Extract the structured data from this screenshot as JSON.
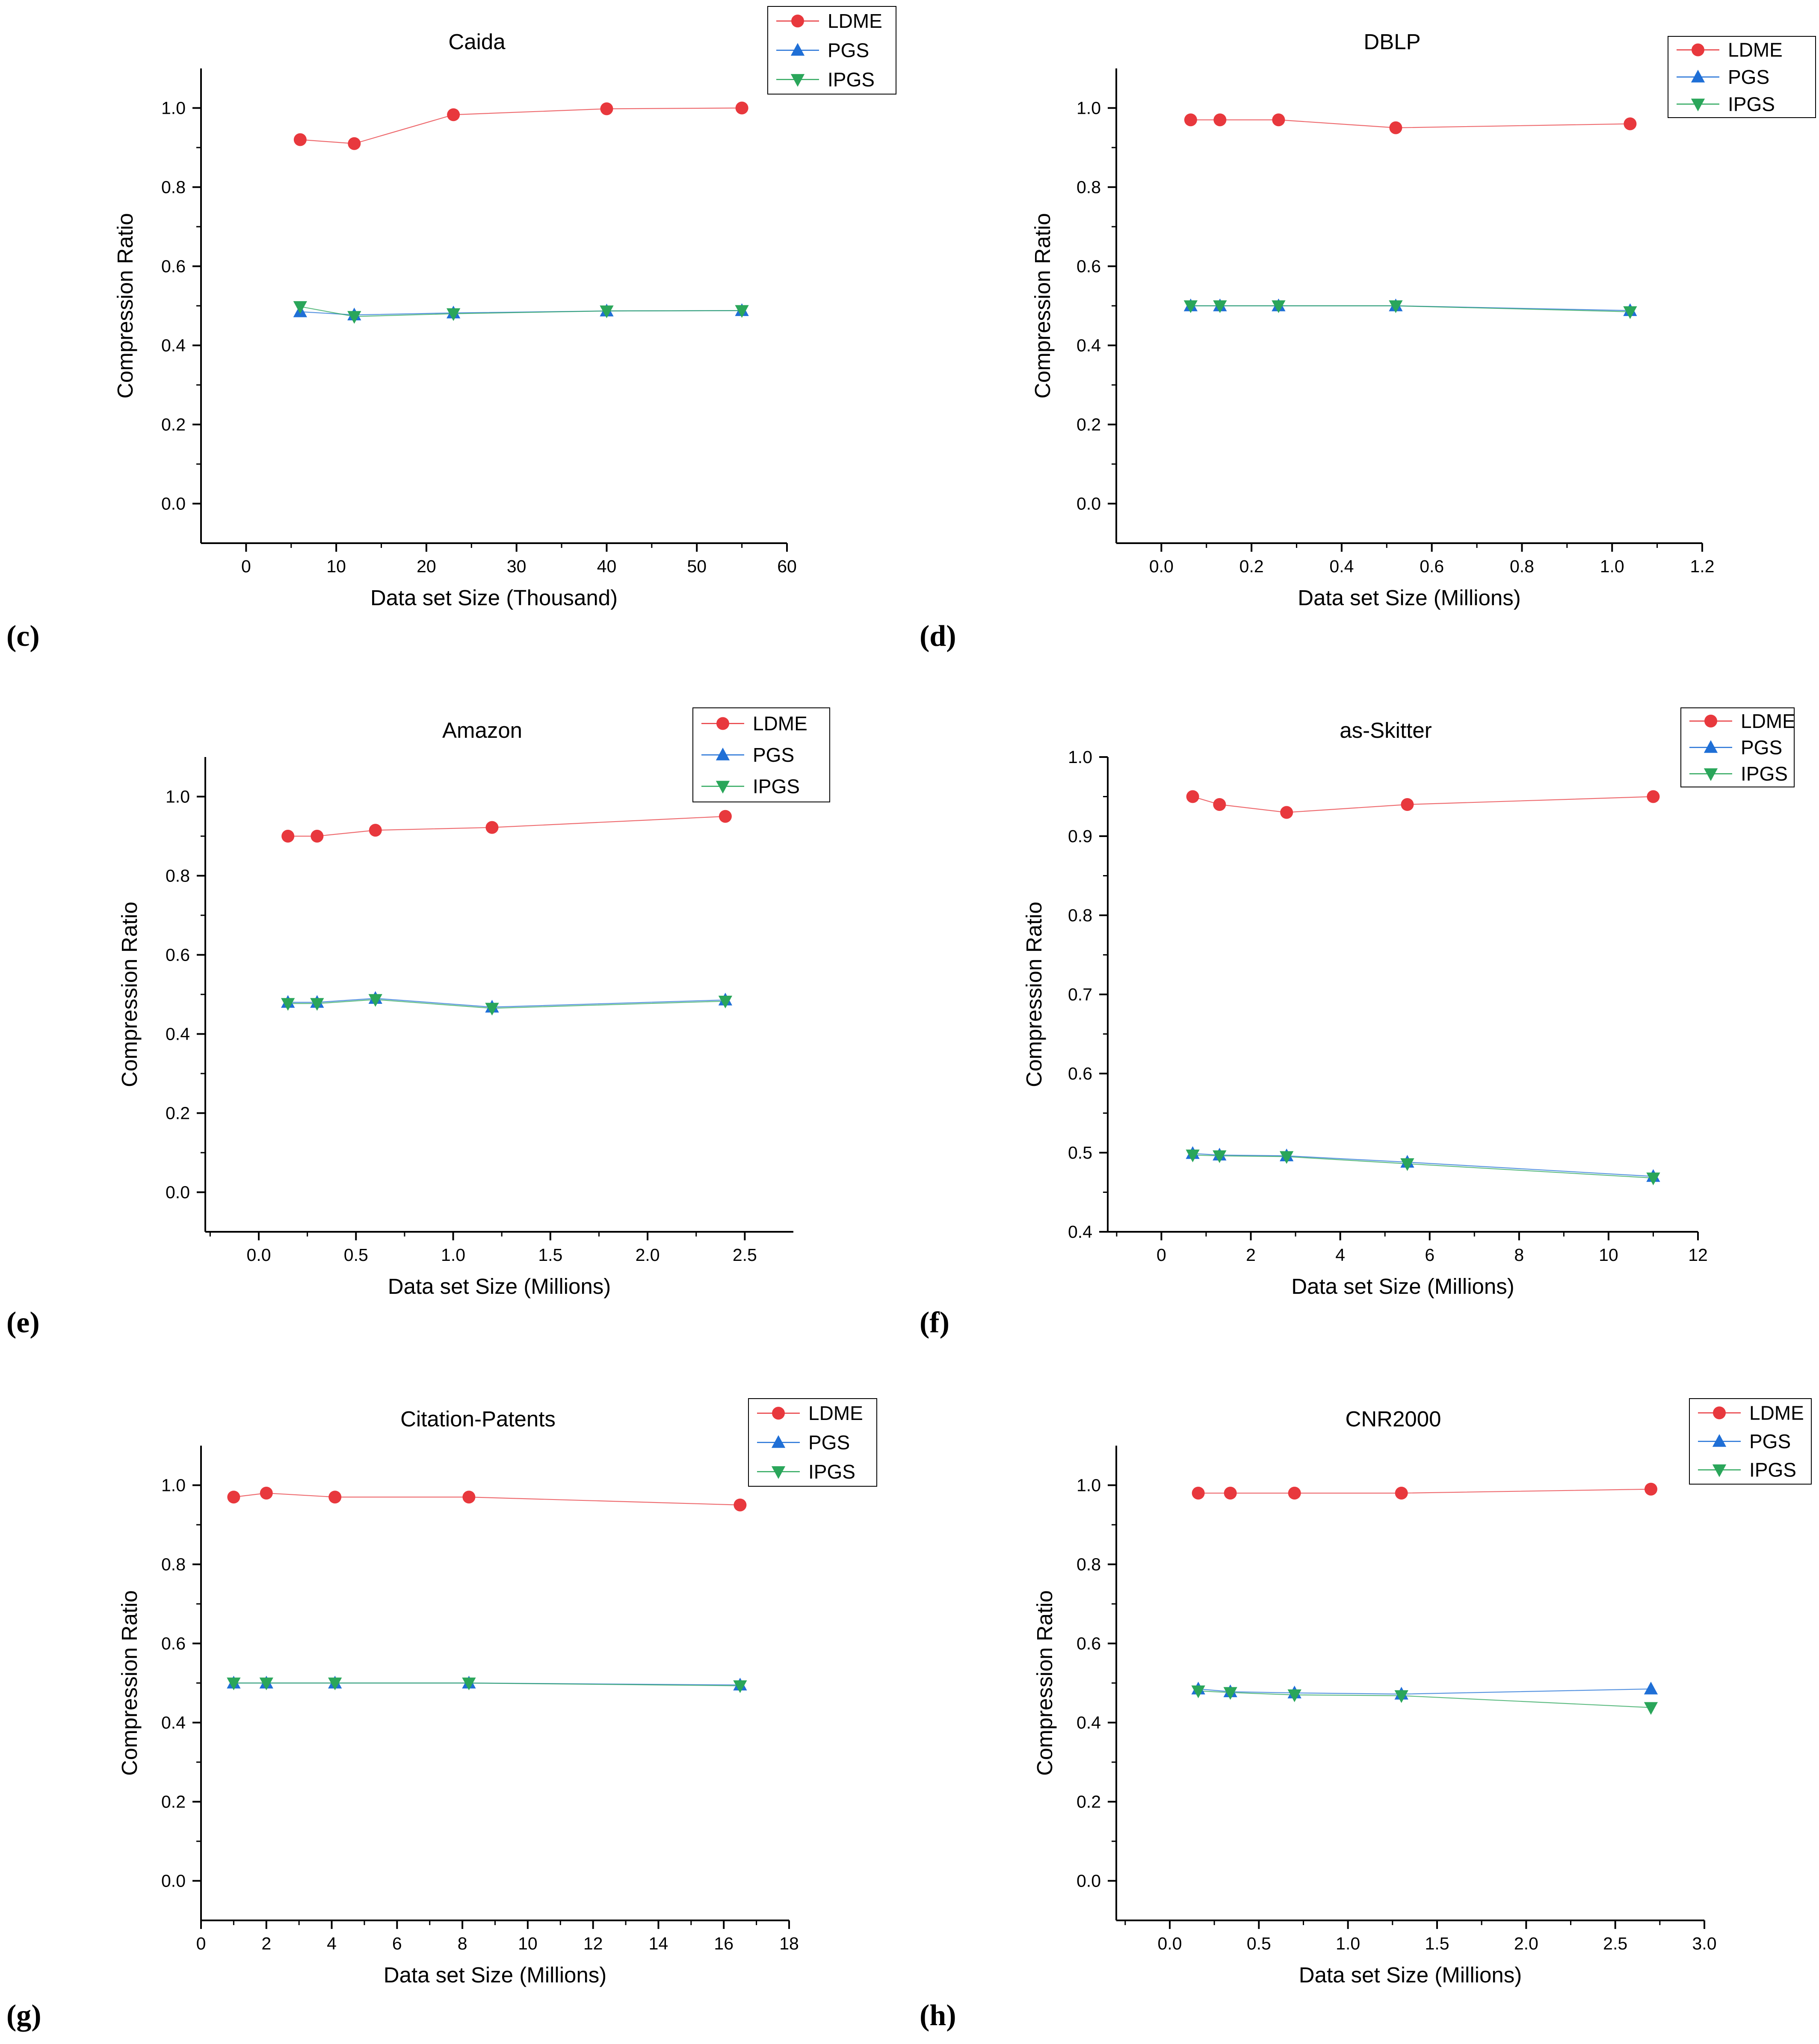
{
  "colors": {
    "LDME": "#e8383d",
    "PGS": "#1f6fd6",
    "IPGS": "#2aa65a"
  },
  "chart_data": [
    {
      "panel": "(c)",
      "type": "line",
      "title": "Caida",
      "xlabel": "Data set Size (Thousand)",
      "ylabel": "Compression Ratio",
      "xlim": [
        -5,
        60
      ],
      "ylim": [
        -0.1,
        1.1
      ],
      "xticks": [
        0,
        10,
        20,
        30,
        40,
        50,
        60
      ],
      "xtick_labels": [
        "0",
        "10",
        "20",
        "30",
        "40",
        "50",
        "60"
      ],
      "yticks": [
        0.0,
        0.2,
        0.4,
        0.6,
        0.8,
        1.0
      ],
      "ytick_labels": [
        "0.0",
        "0.2",
        "0.4",
        "0.6",
        "0.8",
        "1.0"
      ],
      "legend": "top-right",
      "x": [
        6,
        12,
        23,
        40,
        55
      ],
      "series": [
        {
          "name": "LDME",
          "marker": "circle",
          "values": [
            0.92,
            0.91,
            0.983,
            0.998,
            1.0
          ]
        },
        {
          "name": "PGS",
          "marker": "triangle-up",
          "values": [
            0.485,
            0.477,
            0.482,
            0.487,
            0.488
          ]
        },
        {
          "name": "IPGS",
          "marker": "triangle-down",
          "values": [
            0.498,
            0.473,
            0.48,
            0.487,
            0.488
          ]
        }
      ]
    },
    {
      "panel": "(d)",
      "type": "line",
      "title": "DBLP",
      "xlabel": "Data set Size (Millions)",
      "ylabel": "Compression Ratio",
      "xlim": [
        -0.1,
        1.2
      ],
      "ylim": [
        -0.1,
        1.1
      ],
      "xticks": [
        0.0,
        0.2,
        0.4,
        0.6,
        0.8,
        1.0,
        1.2
      ],
      "xtick_labels": [
        "0.0",
        "0.2",
        "0.4",
        "0.6",
        "0.8",
        "1.0",
        "1.2"
      ],
      "yticks": [
        0.0,
        0.2,
        0.4,
        0.6,
        0.8,
        1.0
      ],
      "ytick_labels": [
        "0.0",
        "0.2",
        "0.4",
        "0.6",
        "0.8",
        "1.0"
      ],
      "legend": "top-right",
      "x": [
        0.065,
        0.13,
        0.26,
        0.52,
        1.04
      ],
      "series": [
        {
          "name": "LDME",
          "marker": "circle",
          "values": [
            0.97,
            0.97,
            0.97,
            0.95,
            0.96
          ]
        },
        {
          "name": "PGS",
          "marker": "triangle-up",
          "values": [
            0.5,
            0.5,
            0.5,
            0.5,
            0.488
          ]
        },
        {
          "name": "IPGS",
          "marker": "triangle-down",
          "values": [
            0.5,
            0.5,
            0.5,
            0.5,
            0.485
          ]
        }
      ]
    },
    {
      "panel": "(e)",
      "type": "line",
      "title": "Amazon",
      "xlabel": "Data set Size (Millions)",
      "ylabel": "Compression Ratio",
      "xlim": [
        -0.275,
        2.75
      ],
      "ylim": [
        -0.1,
        1.1
      ],
      "xticks": [
        0.0,
        0.5,
        1.0,
        1.5,
        2.0,
        2.5
      ],
      "xtick_labels": [
        "0.0",
        "0.5",
        "1.0",
        "1.5",
        "2.0",
        "2.5"
      ],
      "yticks": [
        0.0,
        0.2,
        0.4,
        0.6,
        0.8,
        1.0
      ],
      "ytick_labels": [
        "0.0",
        "0.2",
        "0.4",
        "0.6",
        "0.8",
        "1.0"
      ],
      "legend": "top-right",
      "x": [
        0.15,
        0.3,
        0.6,
        1.2,
        2.4
      ],
      "series": [
        {
          "name": "LDME",
          "marker": "circle",
          "values": [
            0.9,
            0.9,
            0.915,
            0.922,
            0.95
          ]
        },
        {
          "name": "PGS",
          "marker": "triangle-up",
          "values": [
            0.48,
            0.48,
            0.49,
            0.468,
            0.486
          ]
        },
        {
          "name": "IPGS",
          "marker": "triangle-down",
          "values": [
            0.477,
            0.477,
            0.487,
            0.465,
            0.483
          ]
        }
      ]
    },
    {
      "panel": "(f)",
      "type": "line",
      "title": "as-Skitter",
      "xlabel": "Data set Size (Millions)",
      "ylabel": "Compression Ratio",
      "xlim": [
        -1.2,
        12
      ],
      "ylim": [
        0.4,
        1.0
      ],
      "xticks": [
        0,
        2,
        4,
        6,
        8,
        10,
        12
      ],
      "xtick_labels": [
        "0",
        "2",
        "4",
        "6",
        "8",
        "10",
        "12"
      ],
      "yticks": [
        0.4,
        0.5,
        0.6,
        0.7,
        0.8,
        0.9,
        1.0
      ],
      "ytick_labels": [
        "0.4",
        "0.5",
        "0.6",
        "0.7",
        "0.8",
        "0.9",
        "1.0"
      ],
      "legend": "top-right",
      "x": [
        0.7,
        1.3,
        2.8,
        5.5,
        11
      ],
      "series": [
        {
          "name": "LDME",
          "marker": "circle",
          "values": [
            0.95,
            0.94,
            0.93,
            0.94,
            0.95
          ]
        },
        {
          "name": "PGS",
          "marker": "triangle-up",
          "values": [
            0.499,
            0.497,
            0.496,
            0.488,
            0.47
          ]
        },
        {
          "name": "IPGS",
          "marker": "triangle-down",
          "values": [
            0.497,
            0.496,
            0.495,
            0.486,
            0.468
          ]
        }
      ]
    },
    {
      "panel": "(g)",
      "type": "line",
      "title": "Citation-Patents",
      "xlabel": "Data set Size (Millions)",
      "ylabel": "Compression Ratio",
      "xlim": [
        0,
        18
      ],
      "ylim": [
        -0.1,
        1.1
      ],
      "xticks": [
        0,
        2,
        4,
        6,
        8,
        10,
        12,
        14,
        16,
        18
      ],
      "xtick_labels": [
        "0",
        "2",
        "4",
        "6",
        "8",
        "10",
        "12",
        "14",
        "16",
        "18"
      ],
      "yticks": [
        0.0,
        0.2,
        0.4,
        0.6,
        0.8,
        1.0
      ],
      "ytick_labels": [
        "0.0",
        "0.2",
        "0.4",
        "0.6",
        "0.8",
        "1.0"
      ],
      "legend": "top-right",
      "x": [
        1,
        2,
        4.1,
        8.2,
        16.5
      ],
      "series": [
        {
          "name": "LDME",
          "marker": "circle",
          "values": [
            0.97,
            0.98,
            0.97,
            0.97,
            0.95
          ]
        },
        {
          "name": "PGS",
          "marker": "triangle-up",
          "values": [
            0.5,
            0.5,
            0.5,
            0.5,
            0.495
          ]
        },
        {
          "name": "IPGS",
          "marker": "triangle-down",
          "values": [
            0.5,
            0.5,
            0.5,
            0.5,
            0.493
          ]
        }
      ]
    },
    {
      "panel": "(h)",
      "type": "line",
      "title": "CNR2000",
      "xlabel": "Data set Size (Millions)",
      "ylabel": "Compression Ratio",
      "xlim": [
        -0.3,
        3.0
      ],
      "ylim": [
        -0.1,
        1.1
      ],
      "xticks": [
        0.0,
        0.5,
        1.0,
        1.5,
        2.0,
        2.5,
        3.0
      ],
      "xtick_labels": [
        "0.0",
        "0.5",
        "1.0",
        "1.5",
        "2.0",
        "2.5",
        "3.0"
      ],
      "yticks": [
        0.0,
        0.2,
        0.4,
        0.6,
        0.8,
        1.0
      ],
      "ytick_labels": [
        "0.0",
        "0.2",
        "0.4",
        "0.6",
        "0.8",
        "1.0"
      ],
      "legend": "top-right",
      "x": [
        0.16,
        0.34,
        0.7,
        1.3,
        2.7
      ],
      "series": [
        {
          "name": "LDME",
          "marker": "circle",
          "values": [
            0.98,
            0.98,
            0.98,
            0.98,
            0.99
          ]
        },
        {
          "name": "PGS",
          "marker": "triangle-up",
          "values": [
            0.485,
            0.478,
            0.475,
            0.472,
            0.485
          ]
        },
        {
          "name": "IPGS",
          "marker": "triangle-down",
          "values": [
            0.48,
            0.476,
            0.47,
            0.468,
            0.438
          ]
        }
      ]
    }
  ]
}
